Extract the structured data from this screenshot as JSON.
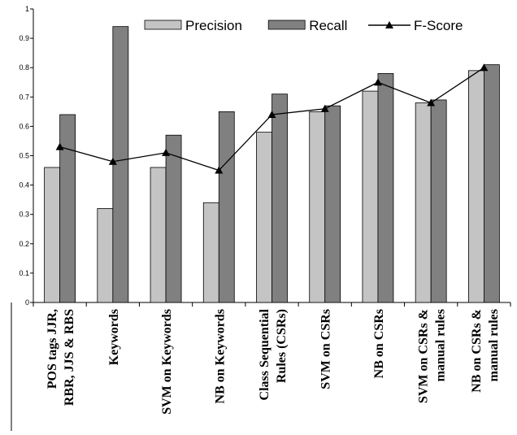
{
  "chart_data": {
    "type": "bar",
    "categories": [
      [
        "POS tags JJR,",
        "RBR, JJS & RBS"
      ],
      [
        "Keywords"
      ],
      [
        "SVM on Keywords"
      ],
      [
        "NB on Keywords"
      ],
      [
        "Class Sequential",
        "Rules (CSRs)"
      ],
      [
        "SVM on CSRs"
      ],
      [
        "NB on CSRs"
      ],
      [
        "SVM on CSRs &",
        "manual rules"
      ],
      [
        "NB on CSRs &",
        "manual rules"
      ]
    ],
    "series": [
      {
        "name": "Precision",
        "type": "bar",
        "color": "#c4c4c4",
        "values": [
          0.46,
          0.32,
          0.46,
          0.34,
          0.58,
          0.65,
          0.72,
          0.68,
          0.79
        ]
      },
      {
        "name": "Recall",
        "type": "bar",
        "color": "#808080",
        "values": [
          0.64,
          0.94,
          0.57,
          0.65,
          0.71,
          0.67,
          0.78,
          0.69,
          0.81
        ]
      },
      {
        "name": "F-Score",
        "type": "line",
        "color": "#000000",
        "marker": "triangle",
        "values": [
          0.53,
          0.48,
          0.51,
          0.45,
          0.64,
          0.66,
          0.75,
          0.68,
          0.8
        ]
      }
    ],
    "yticks": [
      "0",
      "0.1",
      "0.2",
      "0.3",
      "0.4",
      "0.5",
      "0.6",
      "0.7",
      "0.8",
      "0.9",
      "1"
    ],
    "ylim": [
      0,
      1
    ],
    "legend": "top-right",
    "grid": false
  }
}
